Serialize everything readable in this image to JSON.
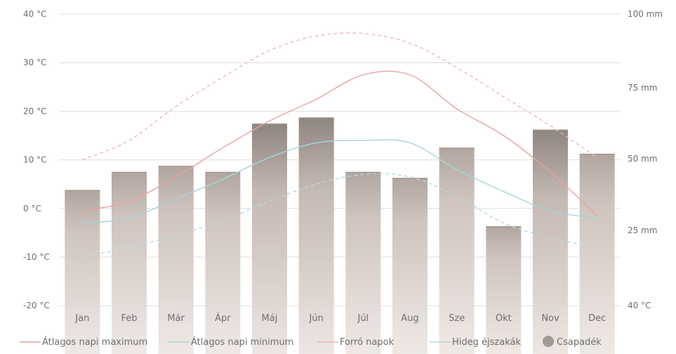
{
  "chart_data": {
    "type": "bar",
    "categories": [
      "Jan",
      "Feb",
      "Már",
      "Ápr",
      "Máj",
      "Jún",
      "Júl",
      "Aug",
      "Sze",
      "Okt",
      "Nov",
      "Dec"
    ],
    "y_left": {
      "ticks": [
        40,
        30,
        20,
        10,
        0,
        -10,
        -20
      ],
      "tick_labels": [
        "40 °C",
        "30 °C",
        "20 °C",
        "10 °C",
        "0 °C",
        "-10 °C",
        "-20 °C"
      ],
      "range": [
        -20,
        40
      ]
    },
    "y_right": {
      "ticks": [
        100,
        75,
        50,
        25
      ],
      "tick_labels": [
        "100 mm",
        "75 mm",
        "50 mm",
        "25 mm"
      ],
      "extra_label": "40 °C",
      "range": [
        0,
        100
      ]
    },
    "series": [
      {
        "name": "Átlagos napi maximum",
        "kind": "line",
        "style": "solid",
        "color": "#e8a3a3",
        "values": [
          -0.5,
          1.5,
          6.5,
          12.5,
          18,
          22.5,
          27.5,
          27.5,
          20.5,
          15,
          7.5,
          -1.5
        ]
      },
      {
        "name": "Átlagos napi minimum",
        "kind": "line",
        "style": "solid",
        "color": "#a9d3de",
        "values": [
          -3,
          -2,
          2,
          6,
          10.5,
          13.5,
          14,
          13.5,
          8,
          3.5,
          -0.5,
          -2
        ]
      },
      {
        "name": "Forró napok",
        "kind": "line",
        "style": "dashed",
        "color": "#f0b8b8",
        "values": [
          10,
          14,
          21,
          27,
          32.5,
          35.5,
          36,
          34,
          29,
          23,
          17,
          10.5
        ]
      },
      {
        "name": "Hideg éjszakák",
        "kind": "line",
        "style": "dashed",
        "color": "#b5d9e2",
        "values": [
          -10,
          -8,
          -5.5,
          -2.5,
          1.5,
          5,
          7,
          6.5,
          2.5,
          -3,
          -6,
          -8
        ]
      },
      {
        "name": "Csapadék",
        "kind": "bar",
        "unit": "mm",
        "color": "#c8bab3",
        "values": [
          34,
          37,
          38,
          37,
          45,
          46,
          37,
          36,
          41,
          28,
          44,
          40
        ]
      }
    ],
    "legend": {
      "placement": "bottom"
    },
    "grid": true
  }
}
